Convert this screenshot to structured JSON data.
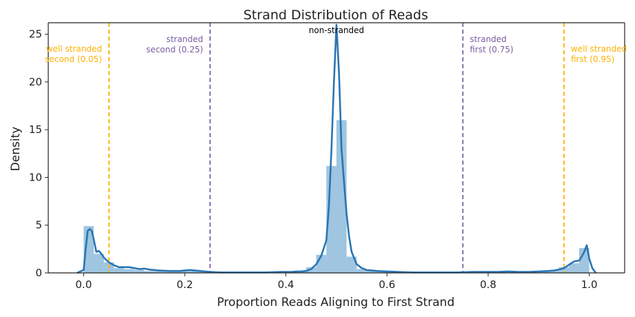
{
  "chart_data": {
    "type": "histogram+kde",
    "title": "Strand Distribution of Reads",
    "xlabel": "Proportion Reads Aligning to First Strand",
    "ylabel": "Density",
    "xlim": [
      -0.07,
      1.07
    ],
    "ylim": [
      0,
      26.2
    ],
    "x_ticks": [
      0.0,
      0.2,
      0.4,
      0.6,
      0.8,
      1.0
    ],
    "x_tick_labels": [
      "0.0",
      "0.2",
      "0.4",
      "0.6",
      "0.8",
      "1.0"
    ],
    "y_ticks": [
      0,
      5,
      10,
      15,
      20,
      25
    ],
    "y_tick_labels": [
      "0",
      "5",
      "10",
      "15",
      "20",
      "25"
    ],
    "bin_width": 0.02,
    "histogram": [
      {
        "x0": 0.0,
        "x1": 0.02,
        "density": 4.9
      },
      {
        "x0": 0.02,
        "x1": 0.04,
        "density": 2.0
      },
      {
        "x0": 0.04,
        "x1": 0.06,
        "density": 1.1
      },
      {
        "x0": 0.06,
        "x1": 0.08,
        "density": 0.5
      },
      {
        "x0": 0.08,
        "x1": 0.1,
        "density": 0.4
      },
      {
        "x0": 0.1,
        "x1": 0.12,
        "density": 0.3
      },
      {
        "x0": 0.12,
        "x1": 0.14,
        "density": 0.2
      },
      {
        "x0": 0.14,
        "x1": 0.16,
        "density": 0.2
      },
      {
        "x0": 0.16,
        "x1": 0.18,
        "density": 0.15
      },
      {
        "x0": 0.18,
        "x1": 0.2,
        "density": 0.2
      },
      {
        "x0": 0.2,
        "x1": 0.22,
        "density": 0.2
      },
      {
        "x0": 0.22,
        "x1": 0.24,
        "density": 0.15
      },
      {
        "x0": 0.4,
        "x1": 0.42,
        "density": 0.1
      },
      {
        "x0": 0.42,
        "x1": 0.44,
        "density": 0.15
      },
      {
        "x0": 0.44,
        "x1": 0.46,
        "density": 0.6
      },
      {
        "x0": 0.46,
        "x1": 0.48,
        "density": 1.9
      },
      {
        "x0": 0.48,
        "x1": 0.5,
        "density": 11.2
      },
      {
        "x0": 0.5,
        "x1": 0.52,
        "density": 16.0
      },
      {
        "x0": 0.52,
        "x1": 0.54,
        "density": 1.7
      },
      {
        "x0": 0.54,
        "x1": 0.56,
        "density": 0.4
      },
      {
        "x0": 0.56,
        "x1": 0.58,
        "density": 0.2
      },
      {
        "x0": 0.58,
        "x1": 0.6,
        "density": 0.1
      },
      {
        "x0": 0.9,
        "x1": 0.92,
        "density": 0.15
      },
      {
        "x0": 0.92,
        "x1": 0.94,
        "density": 0.25
      },
      {
        "x0": 0.94,
        "x1": 0.96,
        "density": 0.6
      },
      {
        "x0": 0.96,
        "x1": 0.98,
        "density": 1.0
      },
      {
        "x0": 0.98,
        "x1": 1.0,
        "density": 2.6
      }
    ],
    "kde": {
      "x": [
        -0.013,
        0.0,
        0.004,
        0.008,
        0.012,
        0.016,
        0.02,
        0.025,
        0.03,
        0.035,
        0.04,
        0.05,
        0.06,
        0.07,
        0.08,
        0.09,
        0.1,
        0.11,
        0.12,
        0.13,
        0.14,
        0.15,
        0.17,
        0.19,
        0.21,
        0.23,
        0.25,
        0.27,
        0.3,
        0.33,
        0.36,
        0.39,
        0.41,
        0.42,
        0.43,
        0.44,
        0.45,
        0.46,
        0.47,
        0.48,
        0.485,
        0.49,
        0.495,
        0.5,
        0.505,
        0.51,
        0.515,
        0.52,
        0.525,
        0.53,
        0.54,
        0.55,
        0.56,
        0.57,
        0.58,
        0.6,
        0.62,
        0.65,
        0.68,
        0.71,
        0.74,
        0.77,
        0.8,
        0.82,
        0.84,
        0.86,
        0.88,
        0.9,
        0.92,
        0.93,
        0.94,
        0.95,
        0.96,
        0.97,
        0.98,
        0.985,
        0.99,
        0.995,
        1.0,
        1.006,
        1.013
      ],
      "y": [
        0.0,
        0.3,
        2.5,
        4.4,
        4.6,
        4.4,
        3.5,
        2.2,
        2.3,
        2.0,
        1.6,
        1.1,
        0.8,
        0.6,
        0.6,
        0.6,
        0.5,
        0.4,
        0.45,
        0.35,
        0.3,
        0.25,
        0.2,
        0.2,
        0.3,
        0.2,
        0.1,
        0.05,
        0.05,
        0.05,
        0.05,
        0.1,
        0.1,
        0.15,
        0.15,
        0.2,
        0.4,
        0.9,
        1.8,
        3.4,
        6.9,
        12.8,
        20.0,
        26.0,
        21.0,
        13.0,
        9.5,
        6.2,
        3.8,
        2.2,
        0.9,
        0.5,
        0.3,
        0.25,
        0.2,
        0.15,
        0.1,
        0.05,
        0.05,
        0.05,
        0.05,
        0.1,
        0.1,
        0.1,
        0.15,
        0.1,
        0.1,
        0.15,
        0.2,
        0.25,
        0.35,
        0.5,
        0.85,
        1.2,
        1.3,
        1.7,
        2.2,
        2.9,
        1.5,
        0.5,
        0.0
      ]
    },
    "vlines": [
      {
        "x": 0.05,
        "color": "#FFB000",
        "label": [
          "well stranded",
          "second (0.05)"
        ],
        "side": "left"
      },
      {
        "x": 0.25,
        "color": "#785EA0",
        "label": [
          "stranded",
          "second (0.25)"
        ],
        "side": "left"
      },
      {
        "x": 0.75,
        "color": "#785EA0",
        "label": [
          "stranded",
          "first (0.75)"
        ],
        "side": "right"
      },
      {
        "x": 0.95,
        "color": "#FFB000",
        "label": [
          "well stranded",
          "first (0.95)"
        ],
        "side": "right"
      }
    ],
    "center_annotation": {
      "x": 0.5,
      "text": "non-stranded",
      "color": "#000000"
    },
    "colors": {
      "histogram": "#7FB2D6",
      "kde": "#2A75B2",
      "axis": "#222222"
    },
    "grid": false
  }
}
